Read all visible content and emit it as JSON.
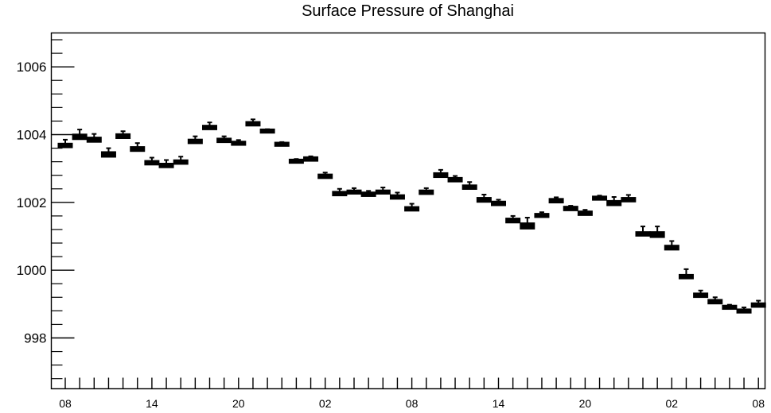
{
  "chart_data": {
    "type": "box",
    "title": "Surface Pressure of Shanghai",
    "xlabel": "",
    "ylabel": "",
    "ylim": [
      996.5,
      1007.0
    ],
    "y_ticks": [
      998,
      1000,
      1002,
      1004,
      1006
    ],
    "y_tick_labels": [
      "998",
      "1000",
      "1002",
      "1004",
      "1006"
    ],
    "x_tick_labels": [
      "08",
      "14",
      "20",
      "02",
      "08",
      "14",
      "20",
      "02",
      "08"
    ],
    "hours": [
      "08",
      "09",
      "10",
      "11",
      "12",
      "13",
      "14",
      "15",
      "16",
      "17",
      "18",
      "19",
      "20",
      "21",
      "22",
      "23",
      "00",
      "01",
      "02",
      "03",
      "04",
      "05",
      "06",
      "07",
      "08",
      "09",
      "10",
      "11",
      "12",
      "13",
      "14",
      "15",
      "16",
      "17",
      "18",
      "19",
      "20",
      "21",
      "22",
      "23",
      "00",
      "01",
      "02",
      "03",
      "04",
      "05",
      "06",
      "07",
      "08"
    ],
    "series": [
      {
        "values": [
          1003.7,
          1003.97,
          1003.88,
          1003.45,
          1003.98,
          1003.6,
          1003.19,
          1003.11,
          1003.21,
          1003.82,
          1004.23,
          1003.85,
          1003.76,
          1004.34,
          1004.12,
          1003.73,
          1003.23,
          1003.3,
          1002.79,
          1002.28,
          1002.32,
          1002.26,
          1002.32,
          1002.18,
          1001.83,
          1002.32,
          1002.83,
          1002.69,
          1002.47,
          1002.1,
          1001.99,
          1001.49,
          1001.35,
          1001.63,
          1002.07,
          1001.84,
          1001.7,
          1002.14,
          1002.01,
          1002.1,
          1001.09,
          1001.09,
          1000.69,
          999.83,
          999.28,
          999.09,
          998.92,
          998.81,
          998.99
        ],
        "low": [
          1003.66,
          1003.9,
          1003.82,
          1003.38,
          1003.93,
          1003.55,
          1003.15,
          1003.07,
          1003.17,
          1003.78,
          1004.19,
          1003.81,
          1003.73,
          1004.3,
          1004.09,
          1003.7,
          1003.2,
          1003.26,
          1002.75,
          1002.24,
          1002.29,
          1002.22,
          1002.29,
          1002.14,
          1001.79,
          1002.28,
          1002.78,
          1002.65,
          1002.43,
          1002.05,
          1001.95,
          1001.44,
          1001.26,
          1001.6,
          1002.03,
          1001.8,
          1001.66,
          1002.11,
          1001.95,
          1002.06,
          1001.05,
          1001.01,
          1000.64,
          999.79,
          999.24,
          999.05,
          998.89,
          998.78,
          998.95
        ],
        "high": [
          1003.85,
          1004.15,
          1004.02,
          1003.6,
          1004.1,
          1003.75,
          1003.32,
          1003.25,
          1003.35,
          1003.95,
          1004.36,
          1003.95,
          1003.84,
          1004.45,
          1004.16,
          1003.78,
          1003.28,
          1003.36,
          1002.88,
          1002.4,
          1002.42,
          1002.34,
          1002.44,
          1002.29,
          1001.96,
          1002.42,
          1002.96,
          1002.78,
          1002.6,
          1002.23,
          1002.08,
          1001.6,
          1001.55,
          1001.71,
          1002.15,
          1001.9,
          1001.78,
          1002.2,
          1002.16,
          1002.22,
          1001.29,
          1001.29,
          1000.86,
          1000.03,
          999.4,
          999.2,
          998.98,
          998.9,
          999.1
        ]
      }
    ],
    "grid": false,
    "legend": "none"
  }
}
